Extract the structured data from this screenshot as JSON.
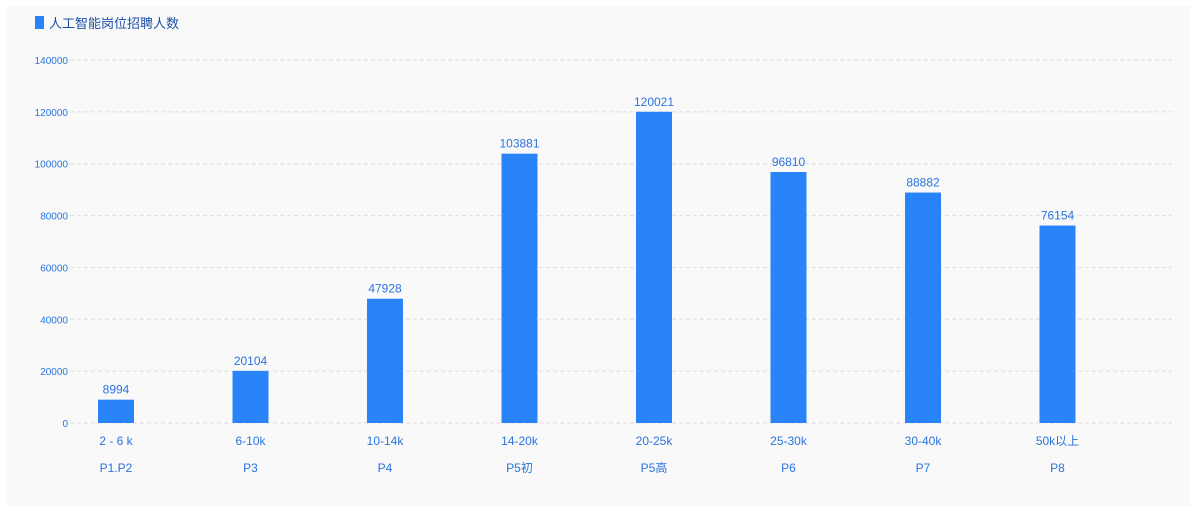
{
  "chart_data": {
    "type": "bar",
    "title": "人工智能岗位招聘人数",
    "categories": [
      "2 - 6 k",
      "6-10k",
      "10-14k",
      "14-20k",
      "20-25k",
      "25-30k",
      "30-40k",
      "50k以上"
    ],
    "sublabels": [
      "P1.P2",
      "P3",
      "P4",
      "P5初",
      "P5高",
      "P6",
      "P7",
      "P8"
    ],
    "values": [
      8994,
      20104,
      47928,
      103881,
      120021,
      96810,
      88882,
      76154
    ],
    "ylim": [
      0,
      140000
    ],
    "yticks": [
      0,
      20000,
      40000,
      60000,
      80000,
      100000,
      120000,
      140000
    ],
    "grid": true,
    "colors": {
      "bar": "#2a84f9",
      "text": "#2a74e0",
      "grid": "#dddddd"
    }
  }
}
